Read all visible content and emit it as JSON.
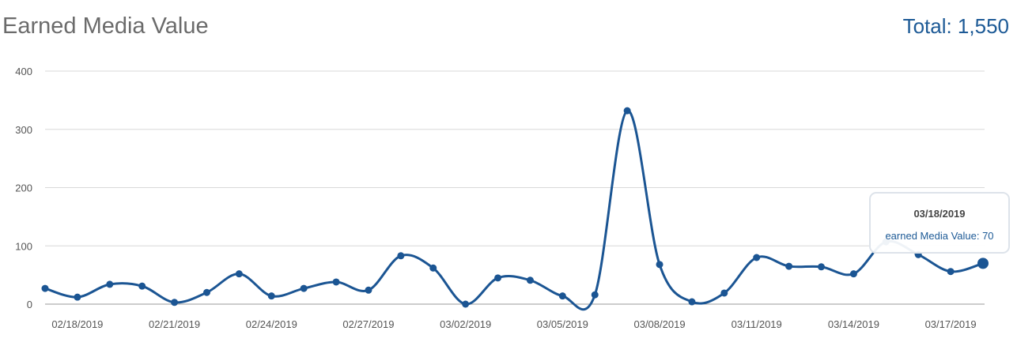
{
  "header": {
    "title": "Earned Media Value",
    "total": "Total: 1,550"
  },
  "chart_data": {
    "type": "line",
    "categories": [
      null,
      "02/18/2019",
      null,
      null,
      "02/21/2019",
      null,
      null,
      "02/24/2019",
      null,
      null,
      "02/27/2019",
      null,
      null,
      "03/02/2019",
      null,
      null,
      "03/05/2019",
      null,
      null,
      "03/08/2019",
      null,
      null,
      "03/11/2019",
      null,
      null,
      "03/14/2019",
      null,
      null,
      "03/17/2019",
      null
    ],
    "series": [
      {
        "color": "#1b5593",
        "values": [
          27,
          12,
          34,
          31,
          3,
          20,
          52,
          14,
          27,
          38,
          24,
          83,
          62,
          0,
          45,
          41,
          14,
          16,
          332,
          68,
          4,
          19,
          80,
          65,
          64,
          52,
          107,
          85,
          56,
          70
        ]
      }
    ],
    "ylim": [
      0,
      400
    ],
    "yticks": [
      0,
      100,
      200,
      300,
      400
    ],
    "grid": true,
    "tooltip": {
      "title": "03/18/2019",
      "text": "earned Media Value: 70"
    }
  }
}
